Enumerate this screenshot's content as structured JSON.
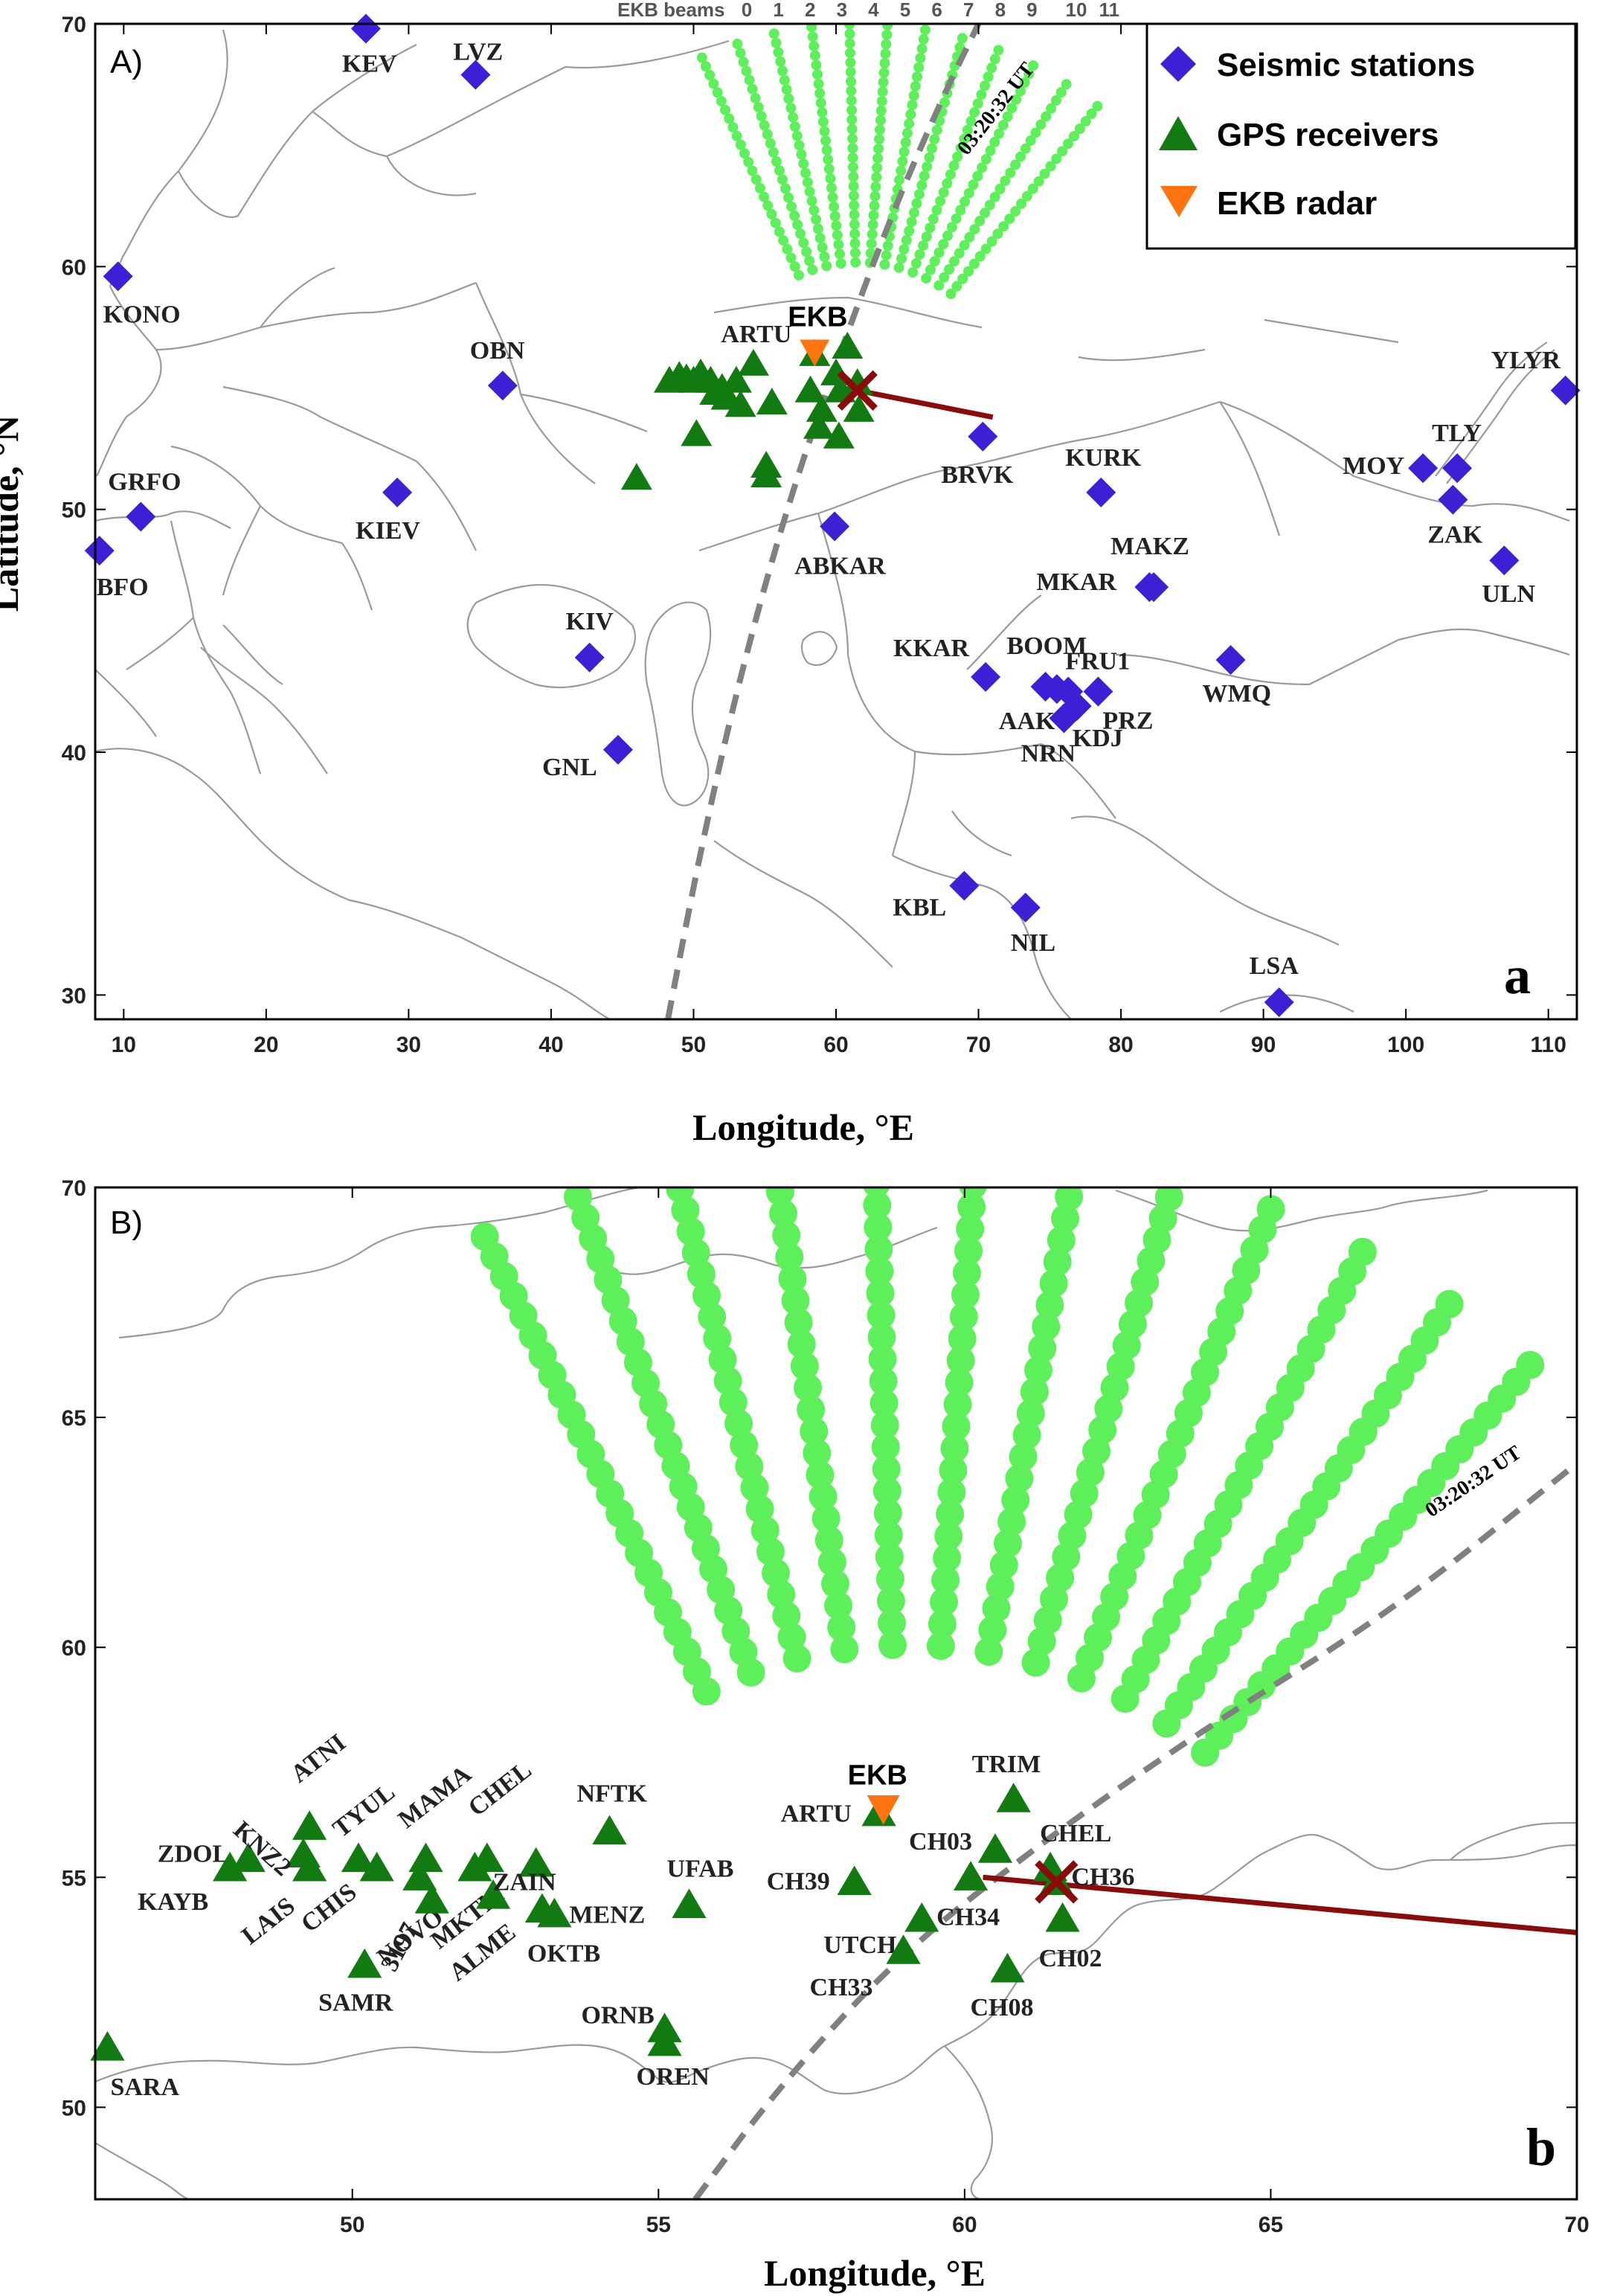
{
  "colors": {
    "seismic": "#3d1fd6",
    "gps": "#117a11",
    "radar": "#ff7410",
    "beams": "#5ef05a",
    "epicenter": "#8b0a0a",
    "terminator": "#808080"
  },
  "legend": {
    "seismic": "Seismic stations",
    "gps": "GPS receivers",
    "radar": "EKB radar"
  },
  "beams": {
    "caption": "EKB beams",
    "numbers": [
      "0",
      "1",
      "2",
      "3",
      "4",
      "5",
      "6",
      "7",
      "8",
      "9",
      "10",
      "11"
    ]
  },
  "terminator_label": "03:20:32 UT",
  "epicenter": {
    "lon": 61.5,
    "lat": 54.9
  },
  "panelA": {
    "letter": "A)",
    "tag": "a",
    "xlabel": "Longitude, °E",
    "ylabel": "Latitude, °N",
    "xlim": [
      8,
      112
    ],
    "ylim": [
      29,
      70
    ],
    "xticks": [
      10,
      20,
      30,
      40,
      50,
      60,
      70,
      80,
      90,
      100,
      110
    ],
    "yticks": [
      30,
      40,
      50,
      60,
      70
    ],
    "terminator": [
      [
        48.2,
        29.0
      ],
      [
        50.5,
        36.0
      ],
      [
        53.2,
        43.0
      ],
      [
        56.5,
        50.0
      ],
      [
        60.0,
        56.0
      ],
      [
        63.8,
        62.0
      ],
      [
        67.5,
        67.0
      ],
      [
        70.0,
        70.0
      ]
    ],
    "trajectory": [
      [
        61.5,
        54.9
      ],
      [
        71.0,
        53.8
      ]
    ],
    "ekb": {
      "name": "EKB",
      "lon": 58.5,
      "lat": 56.5
    },
    "seismic": [
      {
        "name": "KEV",
        "lon": 27.0,
        "lat": 69.8
      },
      {
        "name": "LVZ",
        "lon": 34.7,
        "lat": 67.9
      },
      {
        "name": "KONO",
        "lon": 9.6,
        "lat": 59.6
      },
      {
        "name": "OBN",
        "lon": 36.6,
        "lat": 55.1
      },
      {
        "name": "GRFO",
        "lon": 11.2,
        "lat": 49.7
      },
      {
        "name": "BFO",
        "lon": 8.3,
        "lat": 48.3
      },
      {
        "name": "KIEV",
        "lon": 29.2,
        "lat": 50.7
      },
      {
        "name": "KIV",
        "lon": 42.7,
        "lat": 43.9
      },
      {
        "name": "GNL",
        "lon": 44.7,
        "lat": 40.1
      },
      {
        "name": "ABKAR",
        "lon": 59.9,
        "lat": 49.3
      },
      {
        "name": "BRVK",
        "lon": 70.3,
        "lat": 53.0
      },
      {
        "name": "KURK",
        "lon": 78.6,
        "lat": 50.7
      },
      {
        "name": "MAKZ",
        "lon": 82.3,
        "lat": 46.8
      },
      {
        "name": "MKAR",
        "lon": 82.0,
        "lat": 46.8
      },
      {
        "name": "KKAR",
        "lon": 70.5,
        "lat": 43.1
      },
      {
        "name": "BOOM",
        "lon": 74.7,
        "lat": 42.7
      },
      {
        "name": "FRU1",
        "lon": 76.3,
        "lat": 42.5
      },
      {
        "name": "AAK",
        "lon": 75.5,
        "lat": 42.6
      },
      {
        "name": "PRZ",
        "lon": 78.4,
        "lat": 42.5
      },
      {
        "name": "KDJ",
        "lon": 76.9,
        "lat": 41.9
      },
      {
        "name": "NRN",
        "lon": 76.0,
        "lat": 41.4
      },
      {
        "name": "WMQ",
        "lon": 87.7,
        "lat": 43.8
      },
      {
        "name": "KBL",
        "lon": 69.0,
        "lat": 34.5
      },
      {
        "name": "NIL",
        "lon": 73.3,
        "lat": 33.6
      },
      {
        "name": "LSA",
        "lon": 91.1,
        "lat": 29.7
      },
      {
        "name": "MOY",
        "lon": 101.2,
        "lat": 51.7
      },
      {
        "name": "TLY",
        "lon": 103.6,
        "lat": 51.7
      },
      {
        "name": "ZAK",
        "lon": 103.3,
        "lat": 50.4
      },
      {
        "name": "ULN",
        "lon": 106.9,
        "lat": 47.9
      },
      {
        "name": "YLYR",
        "lon": 111.2,
        "lat": 54.9
      }
    ],
    "gps_label": {
      "name": "ARTU",
      "lon": 58.5,
      "lat": 56.4
    },
    "gps": [
      [
        48.3,
        55.3
      ],
      [
        49.0,
        55.5
      ],
      [
        49.5,
        55.4
      ],
      [
        50.0,
        55.3
      ],
      [
        50.5,
        55.6
      ],
      [
        51.2,
        55.3
      ],
      [
        51.5,
        54.8
      ],
      [
        52.0,
        55.0
      ],
      [
        52.3,
        54.6
      ],
      [
        53.0,
        55.3
      ],
      [
        53.3,
        54.3
      ],
      [
        54.2,
        56.0
      ],
      [
        55.5,
        54.4
      ],
      [
        50.2,
        53.1
      ],
      [
        46.0,
        51.3
      ],
      [
        55.1,
        51.8
      ],
      [
        55.1,
        51.4
      ],
      [
        58.2,
        54.9
      ],
      [
        58.5,
        56.4
      ],
      [
        59.0,
        54.1
      ],
      [
        58.8,
        53.4
      ],
      [
        60.0,
        55.6
      ],
      [
        60.3,
        54.9
      ],
      [
        60.8,
        56.7
      ],
      [
        60.2,
        53.0
      ],
      [
        61.6,
        54.1
      ],
      [
        61.5,
        55.2
      ]
    ]
  },
  "panelB": {
    "letter": "B)",
    "tag": "b",
    "xlabel": "Longitude, °E",
    "xlim": [
      45.8,
      70.0
    ],
    "ylim": [
      48.0,
      70.0
    ],
    "xticks": [
      50,
      55,
      60,
      65,
      70
    ],
    "yticks": [
      50,
      55,
      60,
      65,
      70
    ],
    "terminator": [
      [
        55.6,
        48.0
      ],
      [
        57.0,
        50.5
      ],
      [
        59.0,
        53.4
      ],
      [
        61.5,
        56.0
      ],
      [
        64.0,
        58.3
      ],
      [
        67.0,
        60.8
      ],
      [
        70.0,
        64.0
      ]
    ],
    "trajectory": [
      [
        60.3,
        55.0
      ],
      [
        70.0,
        53.8
      ]
    ],
    "ekb": {
      "name": "EKB",
      "lon": 58.6,
      "lat": 56.5
    },
    "gps": [
      {
        "name": "ZDOL",
        "lon": 48.3,
        "lat": 55.4
      },
      {
        "name": "KNZ2",
        "lon": 49.2,
        "lat": 55.5
      },
      {
        "name": "ATNI",
        "lon": 49.3,
        "lat": 56.1
      },
      {
        "name": "KAYB",
        "lon": 48.0,
        "lat": 55.2
      },
      {
        "name": "LAIS",
        "lon": 49.3,
        "lat": 55.2
      },
      {
        "name": "CHIS",
        "lon": 50.1,
        "lat": 55.4
      },
      {
        "name": "TYUL",
        "lon": 50.4,
        "lat": 55.2
      },
      {
        "name": "NOVO",
        "lon": 51.1,
        "lat": 55.0
      },
      {
        "name": "MAMA",
        "lon": 51.2,
        "lat": 55.4
      },
      {
        "name": "3197",
        "lon": 51.3,
        "lat": 54.5
      },
      {
        "name": "MKTM",
        "lon": 52.0,
        "lat": 55.2
      },
      {
        "name": "CHEL",
        "lon": 52.2,
        "lat": 55.4
      },
      {
        "name": "ALME",
        "lon": 52.3,
        "lat": 54.6
      },
      {
        "name": "ZAIN",
        "lon": 53.0,
        "lat": 55.3
      },
      {
        "name": "MENZ",
        "lon": 53.3,
        "lat": 54.2
      },
      {
        "name": "OKTB",
        "lon": 53.1,
        "lat": 54.3
      },
      {
        "name": "NFTK",
        "lon": 54.2,
        "lat": 56.0
      },
      {
        "name": "UFAB",
        "lon": 55.5,
        "lat": 54.4
      },
      {
        "name": "SAMR",
        "lon": 50.2,
        "lat": 53.1
      },
      {
        "name": "ORNB",
        "lon": 55.1,
        "lat": 51.7
      },
      {
        "name": "OREN",
        "lon": 55.1,
        "lat": 51.4
      },
      {
        "name": "SARA",
        "lon": 46.0,
        "lat": 51.3
      },
      {
        "name": "ARTU",
        "lon": 58.6,
        "lat": 56.4
      },
      {
        "name": "CH39",
        "lon": 58.2,
        "lat": 54.9
      },
      {
        "name": "UTCH",
        "lon": 59.3,
        "lat": 54.1
      },
      {
        "name": "CH33",
        "lon": 59.0,
        "lat": 53.4
      },
      {
        "name": "CH34",
        "lon": 60.1,
        "lat": 55.0
      },
      {
        "name": "CH03",
        "lon": 60.5,
        "lat": 55.6
      },
      {
        "name": "TRIM",
        "lon": 60.8,
        "lat": 56.7
      },
      {
        "name": "CHEL",
        "lon": 61.4,
        "lat": 55.2
      },
      {
        "name": "CH36",
        "lon": 61.5,
        "lat": 54.9
      },
      {
        "name": "CH02",
        "lon": 61.6,
        "lat": 54.1
      },
      {
        "name": "CH08",
        "lon": 60.7,
        "lat": 53.0
      }
    ]
  }
}
